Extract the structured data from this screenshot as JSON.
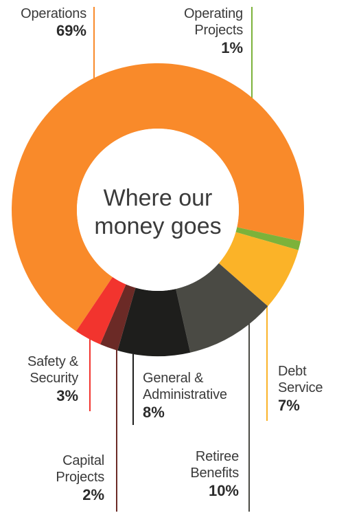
{
  "chart_data": {
    "type": "pie",
    "title": "Where our money goes",
    "categories": [
      "Operations",
      "Operating Projects",
      "Debt Service",
      "Retiree Benefits",
      "General & Administrative",
      "Capital Projects",
      "Safety & Security"
    ],
    "slices": [
      {
        "label_lines": [
          "Operations"
        ],
        "value": 69,
        "percent_text": "69%",
        "color": "#f98a2a"
      },
      {
        "label_lines": [
          "Operating",
          "Projects"
        ],
        "value": 1,
        "percent_text": "1%",
        "color": "#7cb23a"
      },
      {
        "label_lines": [
          "Debt",
          "Service"
        ],
        "value": 7,
        "percent_text": "7%",
        "color": "#fbb328"
      },
      {
        "label_lines": [
          "Retiree",
          "Benefits"
        ],
        "value": 10,
        "percent_text": "10%",
        "color": "#4a4a44"
      },
      {
        "label_lines": [
          "General &",
          "Administrative"
        ],
        "value": 8,
        "percent_text": "8%",
        "color": "#1e1e1c"
      },
      {
        "label_lines": [
          "Capital",
          "Projects"
        ],
        "value": 2,
        "percent_text": "2%",
        "color": "#6b2a26"
      },
      {
        "label_lines": [
          "Safety &",
          "Security"
        ],
        "value": 3,
        "percent_text": "3%",
        "color": "#f2342e"
      }
    ]
  }
}
